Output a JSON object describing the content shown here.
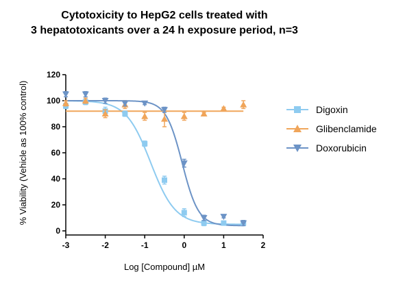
{
  "chart_data": {
    "type": "scatter",
    "title_lines": [
      "Cytotoxicity to HepG2 cells treated with",
      "3 hepatotoxicants over a 24 h exposure period, n=3"
    ],
    "xlabel": "Log [Compound] µM",
    "ylabel": "% Viability (Vehicle as 100% control)",
    "xlim": [
      -3,
      2
    ],
    "ylim": [
      0,
      120
    ],
    "x_ticks": [
      -3,
      -2,
      -1,
      0,
      1,
      2
    ],
    "y_ticks": [
      0,
      20,
      40,
      60,
      80,
      100,
      120
    ],
    "grid": false,
    "legend_position": "right",
    "series": [
      {
        "name": "Digoxin",
        "color": "#8ecbf0",
        "marker": "square",
        "x": [
          -3,
          -2.5,
          -2,
          -1.5,
          -1,
          -0.5,
          0,
          0.5,
          1,
          1.5
        ],
        "y": [
          96,
          99,
          92,
          90,
          67,
          39,
          14,
          6,
          6,
          6
        ],
        "err": [
          2,
          2,
          3,
          2,
          2,
          3,
          3,
          2,
          1,
          2
        ],
        "fit": {
          "top": 100,
          "bottom": 5,
          "logIC50": -0.85,
          "hill": 1.4
        }
      },
      {
        "name": "Glibenclamide",
        "color": "#f0a55a",
        "marker": "triangle-up",
        "x": [
          -3,
          -2.5,
          -2,
          -1.5,
          -1,
          -0.5,
          0,
          0.5,
          1,
          1.5
        ],
        "y": [
          98,
          100,
          90,
          97,
          88,
          86,
          88,
          90,
          94,
          97
        ],
        "err": [
          2,
          2,
          3,
          3,
          3,
          6,
          3,
          1,
          1,
          3
        ],
        "fit": {
          "flat": 92
        }
      },
      {
        "name": "Doxorubicin",
        "color": "#6c93c6",
        "marker": "triangle-down",
        "x": [
          -3,
          -2.5,
          -2,
          -1.5,
          -1,
          -0.5,
          0,
          0.5,
          1,
          1.5
        ],
        "y": [
          105,
          105,
          100,
          98,
          98,
          93,
          52,
          10,
          11,
          6
        ],
        "err": [
          2,
          2,
          2,
          2,
          1,
          2,
          3,
          2,
          1,
          2
        ],
        "fit": {
          "top": 100,
          "bottom": 4,
          "logIC50": -0.05,
          "hill": 2.1
        }
      }
    ]
  }
}
